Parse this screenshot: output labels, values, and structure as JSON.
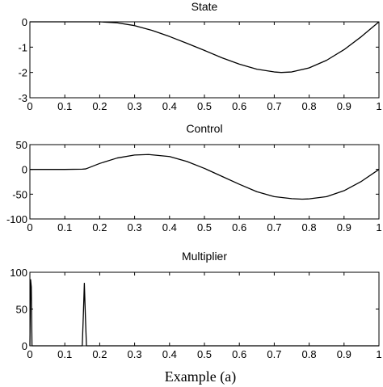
{
  "caption": "Example (a)",
  "chart_data": [
    {
      "type": "line",
      "title": "State",
      "xlabel": "",
      "ylabel": "",
      "xlim": [
        0,
        1
      ],
      "ylim": [
        -3,
        0
      ],
      "x_ticks": [
        "0",
        "0.1",
        "0.2",
        "0.3",
        "0.4",
        "0.5",
        "0.6",
        "0.7",
        "0.8",
        "0.9",
        "1"
      ],
      "y_ticks": [
        "0",
        "-1",
        "-2",
        "-3"
      ],
      "x": [
        0.0,
        0.1,
        0.2,
        0.25,
        0.3,
        0.35,
        0.4,
        0.45,
        0.5,
        0.55,
        0.6,
        0.65,
        0.7,
        0.72,
        0.75,
        0.8,
        0.85,
        0.9,
        0.95,
        1.0
      ],
      "values": [
        0.0,
        0.0,
        0.0,
        -0.04,
        -0.15,
        -0.34,
        -0.58,
        -0.85,
        -1.13,
        -1.42,
        -1.67,
        -1.87,
        -1.98,
        -2.0,
        -1.98,
        -1.82,
        -1.52,
        -1.1,
        -0.58,
        0.0
      ]
    },
    {
      "type": "line",
      "title": "Control",
      "xlabel": "",
      "ylabel": "",
      "xlim": [
        0,
        1
      ],
      "ylim": [
        -100,
        50
      ],
      "x_ticks": [
        "0",
        "0.1",
        "0.2",
        "0.3",
        "0.4",
        "0.5",
        "0.6",
        "0.7",
        "0.8",
        "0.9",
        "1"
      ],
      "y_ticks": [
        "50",
        "0",
        "-50",
        "-100"
      ],
      "x": [
        0.0,
        0.1,
        0.15,
        0.16,
        0.2,
        0.25,
        0.3,
        0.34,
        0.4,
        0.45,
        0.5,
        0.55,
        0.6,
        0.65,
        0.7,
        0.75,
        0.78,
        0.8,
        0.85,
        0.9,
        0.95,
        1.0
      ],
      "values": [
        0.0,
        0.0,
        0.5,
        1.0,
        12,
        23,
        29,
        30,
        26,
        16,
        2,
        -14,
        -30,
        -45,
        -55,
        -59,
        -60,
        -59.5,
        -55,
        -43,
        -24,
        0
      ]
    },
    {
      "type": "line",
      "title": "Multiplier",
      "xlabel": "",
      "ylabel": "",
      "xlim": [
        0,
        1
      ],
      "ylim": [
        0,
        100
      ],
      "x_ticks": [
        "0",
        "0.1",
        "0.2",
        "0.3",
        "0.4",
        "0.5",
        "0.6",
        "0.7",
        "0.8",
        "0.9",
        "1"
      ],
      "y_ticks": [
        "100",
        "50",
        "0"
      ],
      "x": [
        0.0,
        0.002,
        0.004,
        0.006,
        0.01,
        0.14,
        0.15,
        0.153,
        0.156,
        0.159,
        0.162,
        0.17,
        1.0
      ],
      "values": [
        0,
        90,
        80,
        0,
        0,
        0,
        0,
        40,
        85,
        40,
        0,
        0,
        0
      ]
    }
  ]
}
